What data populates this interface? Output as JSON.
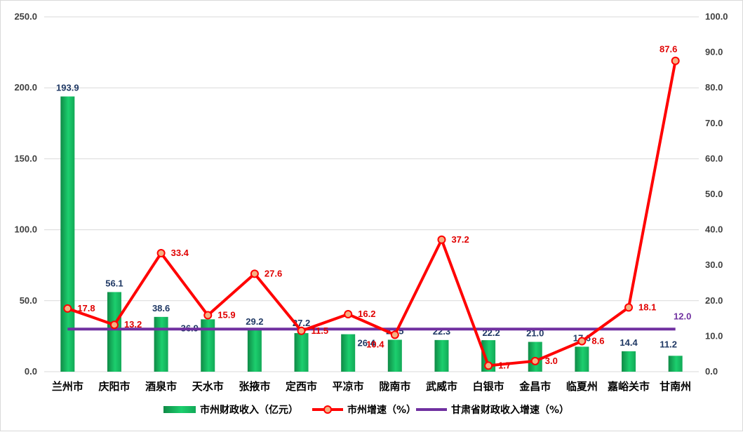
{
  "chart_data": {
    "type": "bar",
    "categories": [
      "兰州市",
      "庆阳市",
      "酒泉市",
      "天水市",
      "张掖市",
      "定西市",
      "平凉市",
      "陇南市",
      "武威市",
      "白银市",
      "金昌市",
      "临夏州",
      "嘉峪关市",
      "甘南州"
    ],
    "series": [
      {
        "name": "市州财政收入（亿元）",
        "type": "bar",
        "axis": "left",
        "values": [
          193.9,
          56.1,
          38.6,
          36.9,
          29.2,
          27.2,
          26.4,
          22.5,
          22.3,
          22.2,
          21.0,
          17.6,
          14.4,
          11.2
        ],
        "labels": [
          "193.9",
          "56.1",
          "38.6",
          "36.9",
          "29.2",
          "27.2",
          "26.4",
          "22.5",
          "22.3",
          "22.2",
          "21.0",
          "17.6",
          "14.4",
          "11.2"
        ]
      },
      {
        "name": "市州增速（%）",
        "type": "line",
        "axis": "right",
        "values": [
          17.8,
          13.2,
          33.4,
          15.9,
          27.6,
          11.5,
          16.2,
          10.4,
          37.2,
          1.7,
          3.0,
          8.6,
          18.1,
          87.6
        ],
        "labels": [
          "17.8",
          "13.2",
          "33.4",
          "15.9",
          "27.6",
          "11.5",
          "16.2",
          "10.4",
          "37.2",
          "1.7",
          "3.0",
          "8.6",
          "18.1",
          "87.6"
        ]
      },
      {
        "name": "甘肃省财政收入增速（%）",
        "type": "line",
        "axis": "right",
        "value": 12.0,
        "label": "12.0"
      }
    ],
    "y_left": {
      "lim": [
        0,
        250
      ],
      "ticks": [
        "0.0",
        "50.0",
        "100.0",
        "150.0",
        "200.0",
        "250.0"
      ]
    },
    "y_right": {
      "lim": [
        0,
        100
      ],
      "ticks": [
        "0.0",
        "10.0",
        "20.0",
        "30.0",
        "40.0",
        "50.0",
        "60.0",
        "70.0",
        "80.0",
        "90.0",
        "100.0"
      ]
    },
    "grid": "horizontal",
    "legend_position": "bottom"
  },
  "colors": {
    "bar_top": "#1ccf6e",
    "bar_bottom": "#0f8a46",
    "growth_line": "#ff0000",
    "marker_fill": "#f4b183",
    "province_line": "#7030a0",
    "bar_label": "#1f3864",
    "line_label": "#e00000",
    "grid": "#d9d9d9"
  }
}
